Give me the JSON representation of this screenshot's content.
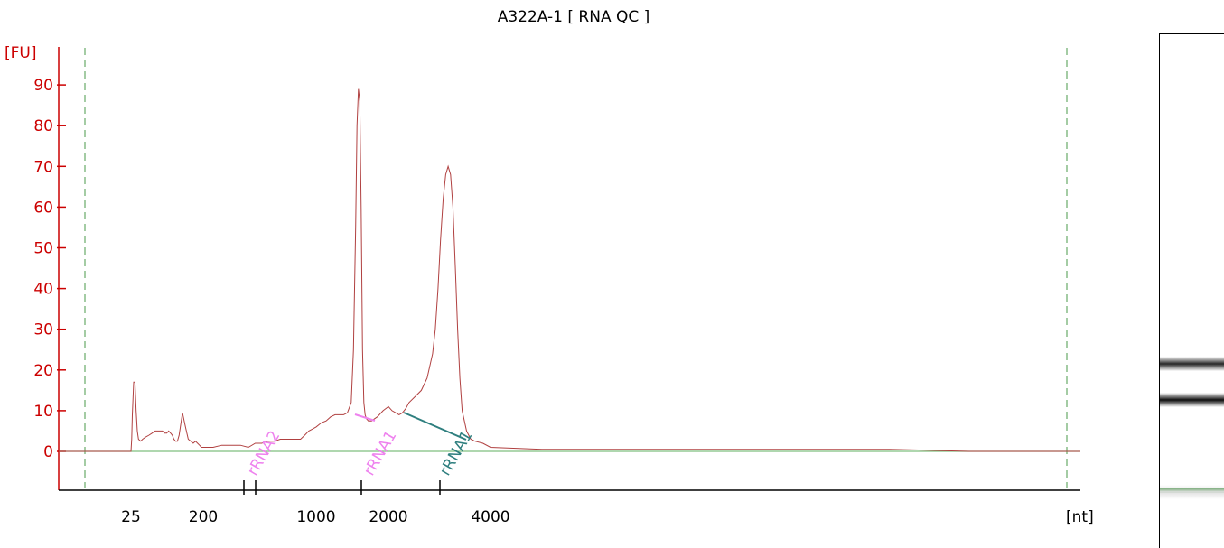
{
  "chart_data": {
    "type": "line",
    "title": "A322A-1  [ RNA QC ]",
    "ylabel": "[FU]",
    "xlabel": "[nt]",
    "ylim": [
      -10,
      95
    ],
    "yticks": [
      0,
      10,
      20,
      30,
      40,
      50,
      60,
      70,
      80,
      90
    ],
    "xticks": [
      "25",
      "200",
      "1000",
      "2000",
      "4000"
    ],
    "grid": false,
    "colors": {
      "trace": "#b04040",
      "axis": "#cc0000",
      "baseline": "#7fbf7f",
      "marker_lines": "#4a9a4a",
      "label_pink": "#ee82ee",
      "label_teal": "#2f7f7f",
      "gel_marker": "#1a7a1a"
    },
    "peak_labels": [
      {
        "text": "rRNA2",
        "color": "#ee82ee"
      },
      {
        "text": "rRNA1",
        "color": "#ee82ee"
      },
      {
        "text": "rRNA1",
        "color": "#2f7f7f"
      }
    ],
    "series": [
      {
        "x": [
          25,
          25.5,
          26,
          27,
          28,
          29,
          30,
          31,
          33,
          35,
          38,
          42,
          46,
          50,
          54,
          58,
          62,
          66,
          70,
          74,
          78,
          82,
          86,
          90,
          95,
          100,
          110,
          120,
          130,
          140,
          150,
          160,
          170,
          180,
          190,
          200,
          230,
          260,
          300,
          340,
          380,
          420,
          460,
          500,
          550,
          600,
          650,
          700,
          750,
          800,
          850,
          900,
          950,
          1000,
          1050,
          1100,
          1150,
          1200,
          1250,
          1300,
          1350,
          1400,
          1430,
          1460,
          1480,
          1500,
          1520,
          1540,
          1560,
          1580,
          1600,
          1620,
          1650,
          1700,
          1800,
          1900,
          2000,
          2050,
          2100,
          2150,
          2200,
          2250,
          2300,
          2400,
          2500,
          2600,
          2700,
          2750,
          2800,
          2850,
          2900,
          2950,
          3000,
          3050,
          3100,
          3150,
          3200,
          3250,
          3300,
          3400,
          3500,
          3600,
          3800,
          4000,
          4500,
          5000,
          6000,
          7000,
          8000,
          10000,
          12000,
          15000
        ],
        "values": [
          0,
          3,
          9,
          17,
          17,
          10,
          5,
          3,
          2.5,
          3,
          3.5,
          4,
          4.5,
          5,
          5,
          5,
          5,
          4.5,
          4.5,
          5,
          4.5,
          4,
          3,
          2.5,
          2.5,
          4,
          9.5,
          6,
          3,
          2.5,
          2,
          2.5,
          2,
          1.5,
          1,
          1,
          1,
          1.5,
          1.5,
          1.5,
          1,
          2,
          2,
          2.5,
          2.5,
          3,
          3,
          3,
          3,
          3,
          4,
          5,
          5.5,
          6,
          7,
          7.5,
          8.5,
          9,
          9,
          9,
          9.5,
          12,
          25,
          55,
          80,
          89,
          86,
          60,
          25,
          12,
          9,
          8,
          7.5,
          7.5,
          8.5,
          10,
          11,
          10,
          9.5,
          9,
          9.5,
          10.5,
          12,
          13.5,
          15,
          18,
          24,
          30,
          40,
          52,
          62,
          68,
          70,
          68,
          60,
          45,
          30,
          18,
          10,
          5,
          3,
          2.5,
          2,
          1,
          0.5,
          0.5,
          0.5,
          0.5,
          0.5,
          0.5,
          0,
          0
        ]
      }
    ]
  },
  "gel_bands": [
    {
      "pos": 0.64,
      "intensity": 0.85
    },
    {
      "pos": 0.71,
      "intensity": 0.95
    },
    {
      "pos": 0.89,
      "intensity": 0.12
    }
  ]
}
